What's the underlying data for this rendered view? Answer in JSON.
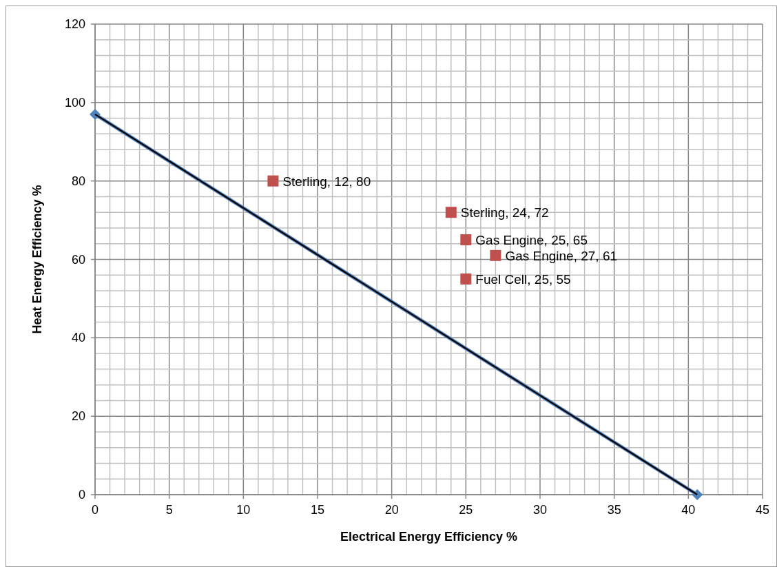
{
  "chart_data": {
    "type": "scatter",
    "xlabel": "Electrical Energy Efficiency %",
    "ylabel": "Heat Energy Efficiency %",
    "xlim": [
      0,
      45
    ],
    "ylim": [
      0,
      120
    ],
    "xticks": [
      0,
      {
        "value": 1,
        "label": null
      },
      {
        "value": 2,
        "label": null
      },
      {
        "value": 3,
        "label": null
      },
      {
        "value": 4,
        "label": null
      },
      5,
      {
        "value": 6,
        "label": null
      },
      {
        "value": 7,
        "label": null
      },
      {
        "value": 8,
        "label": null
      },
      {
        "value": 9,
        "label": null
      },
      10,
      {
        "value": 11,
        "label": null
      },
      {
        "value": 12,
        "label": null
      },
      {
        "value": 13,
        "label": null
      },
      {
        "value": 14,
        "label": null
      },
      15,
      {
        "value": 16,
        "label": null
      },
      {
        "value": 17,
        "label": null
      },
      {
        "value": 18,
        "label": null
      },
      {
        "value": 19,
        "label": null
      },
      20,
      {
        "value": 21,
        "label": null
      },
      {
        "value": 22,
        "label": null
      },
      {
        "value": 23,
        "label": null
      },
      {
        "value": 24,
        "label": null
      },
      25,
      {
        "value": 26,
        "label": null
      },
      {
        "value": 27,
        "label": null
      },
      {
        "value": 28,
        "label": null
      },
      {
        "value": 29,
        "label": null
      },
      30,
      {
        "value": 31,
        "label": null
      },
      {
        "value": 32,
        "label": null
      },
      {
        "value": 33,
        "label": null
      },
      {
        "value": 34,
        "label": null
      },
      35,
      {
        "value": 36,
        "label": null
      },
      {
        "value": 37,
        "label": null
      },
      {
        "value": 38,
        "label": null
      },
      {
        "value": 39,
        "label": null
      },
      40,
      {
        "value": 41,
        "label": null
      },
      {
        "value": 42,
        "label": null
      },
      {
        "value": 43,
        "label": null
      },
      {
        "value": 44,
        "label": null
      },
      45
    ],
    "yticks": [
      0,
      {
        "value": 4,
        "label": null
      },
      {
        "value": 8,
        "label": null
      },
      {
        "value": 12,
        "label": null
      },
      {
        "value": 16,
        "label": null
      },
      20,
      {
        "value": 24,
        "label": null
      },
      {
        "value": 28,
        "label": null
      },
      {
        "value": 32,
        "label": null
      },
      {
        "value": 36,
        "label": null
      },
      40,
      {
        "value": 44,
        "label": null
      },
      {
        "value": 48,
        "label": null
      },
      {
        "value": 52,
        "label": null
      },
      {
        "value": 56,
        "label": null
      },
      60,
      {
        "value": 64,
        "label": null
      },
      {
        "value": 68,
        "label": null
      },
      {
        "value": 72,
        "label": null
      },
      {
        "value": 76,
        "label": null
      },
      80,
      {
        "value": 84,
        "label": null
      },
      {
        "value": 88,
        "label": null
      },
      {
        "value": 92,
        "label": null
      },
      {
        "value": 96,
        "label": null
      },
      100,
      {
        "value": 104,
        "label": null
      },
      {
        "value": 108,
        "label": null
      },
      {
        "value": 112,
        "label": null
      },
      {
        "value": 116,
        "label": null
      },
      120
    ],
    "grid": true,
    "series": [
      {
        "type": "line",
        "color": "#4f81bd",
        "marker": "diamond",
        "x": [
          0,
          40.6
        ],
        "values": [
          97,
          0
        ]
      },
      {
        "type": "line",
        "color": "#000000",
        "marker": "none",
        "x": [
          0,
          40.6
        ],
        "values": [
          97,
          0
        ]
      },
      {
        "color": "#c0504d",
        "marker": "square",
        "x": [
          12,
          24,
          25,
          27,
          25
        ],
        "values": [
          80,
          72,
          65,
          61,
          55
        ]
      }
    ],
    "annotations": [
      {
        "text": "Sterling, 12, 80",
        "x": 12,
        "y": 80
      },
      {
        "text": "Sterling, 24, 72",
        "x": 24,
        "y": 72
      },
      {
        "text": "Gas Engine, 25, 65",
        "x": 25,
        "y": 65
      },
      {
        "text": "Gas Engine, 27, 61",
        "x": 27,
        "y": 61
      },
      {
        "text": "Fuel Cell, 25, 55",
        "x": 25,
        "y": 55
      }
    ]
  }
}
